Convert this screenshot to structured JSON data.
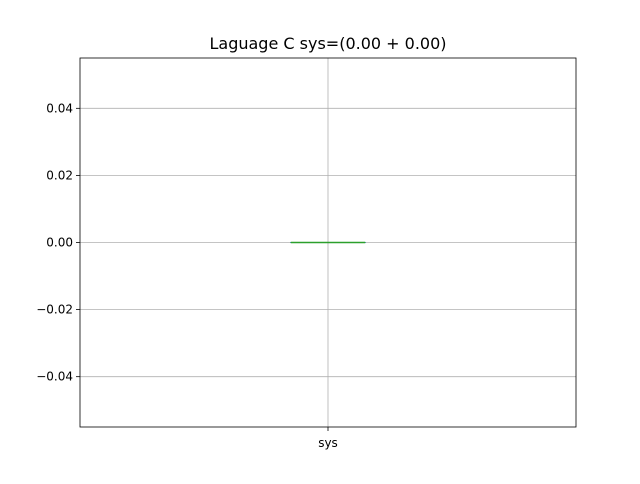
{
  "chart_data": {
    "type": "box",
    "title": "Laguage C sys=(0.00 + 0.00)",
    "xlabel": "",
    "ylabel": "",
    "categories": [
      "sys"
    ],
    "boxes": [
      {
        "category": "sys",
        "min": 0.0,
        "q1": 0.0,
        "median": 0.0,
        "q3": 0.0,
        "max": 0.0
      }
    ],
    "ylim": [
      -0.055,
      0.055
    ],
    "yticks": [
      -0.04,
      -0.02,
      0.0,
      0.02,
      0.04
    ],
    "ytick_labels": [
      "−0.04",
      "−0.02",
      "0.00",
      "0.02",
      "0.04"
    ],
    "grid": true,
    "colors": {
      "median": "#2ca02c",
      "box": "#1f77b4",
      "grid": "#b0b0b0",
      "axes": "#000000"
    }
  }
}
